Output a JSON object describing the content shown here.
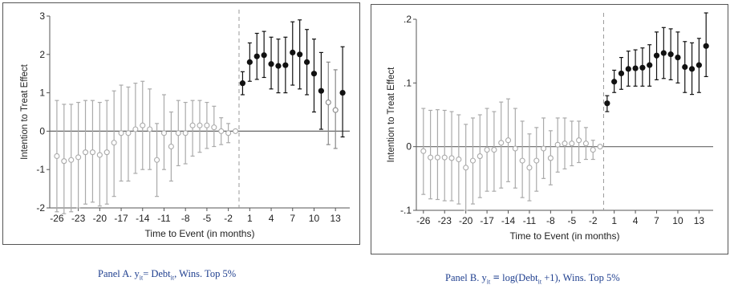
{
  "chart_data": [
    {
      "type": "scatter",
      "xlabel": "Time to Event (in months)",
      "ylabel": "Intention to Treat Effect",
      "ylim": [
        -2,
        3
      ],
      "yticks": [
        "-2",
        "-1",
        "0",
        "1",
        "2",
        "3"
      ],
      "yticks_values": [
        -2,
        -1,
        0,
        1,
        2,
        3
      ],
      "xticks": [
        -26,
        -23,
        -20,
        -17,
        -14,
        -11,
        -8,
        -5,
        -2,
        1,
        4,
        7,
        10,
        13
      ],
      "xlim": [
        -27,
        15
      ],
      "event_line_x": -0.5,
      "colors": {
        "pre": "#aaaaaa",
        "post": "#111111",
        "axis": "#555555"
      },
      "series": [
        {
          "values": [
            {
              "x": -26,
              "y": -0.65,
              "lo": -2.1,
              "hi": 0.8
            },
            {
              "x": -25,
              "y": -0.78,
              "lo": -2.15,
              "hi": 0.7
            },
            {
              "x": -24,
              "y": -0.75,
              "lo": -2.1,
              "hi": 0.7
            },
            {
              "x": -23,
              "y": -0.68,
              "lo": -2.0,
              "hi": 0.75
            },
            {
              "x": -22,
              "y": -0.55,
              "lo": -1.9,
              "hi": 0.8
            },
            {
              "x": -21,
              "y": -0.55,
              "lo": -1.85,
              "hi": 0.8
            },
            {
              "x": -20,
              "y": -0.62,
              "lo": -1.95,
              "hi": 0.75
            },
            {
              "x": -19,
              "y": -0.55,
              "lo": -1.9,
              "hi": 0.8
            },
            {
              "x": -18,
              "y": -0.3,
              "lo": -1.7,
              "hi": 1.05
            },
            {
              "x": -17,
              "y": -0.05,
              "lo": -1.3,
              "hi": 1.2
            },
            {
              "x": -16,
              "y": -0.05,
              "lo": -1.3,
              "hi": 1.15
            },
            {
              "x": -15,
              "y": 0.05,
              "lo": -1.1,
              "hi": 1.25
            },
            {
              "x": -14,
              "y": 0.15,
              "lo": -1.0,
              "hi": 1.3
            },
            {
              "x": -13,
              "y": 0.05,
              "lo": -1.0,
              "hi": 1.1
            },
            {
              "x": -12,
              "y": -0.75,
              "lo": -1.7,
              "hi": 0.2
            },
            {
              "x": -11,
              "y": -0.05,
              "lo": -1.0,
              "hi": 0.95
            },
            {
              "x": -10,
              "y": -0.4,
              "lo": -1.3,
              "hi": 0.5
            },
            {
              "x": -9,
              "y": -0.05,
              "lo": -0.9,
              "hi": 0.8
            },
            {
              "x": -8,
              "y": -0.05,
              "lo": -0.85,
              "hi": 0.75
            },
            {
              "x": -7,
              "y": 0.15,
              "lo": -0.65,
              "hi": 0.8
            },
            {
              "x": -6,
              "y": 0.15,
              "lo": -0.55,
              "hi": 0.8
            },
            {
              "x": -5,
              "y": 0.15,
              "lo": -0.45,
              "hi": 0.75
            },
            {
              "x": -4,
              "y": 0.1,
              "lo": -0.4,
              "hi": 0.65
            },
            {
              "x": -3,
              "y": 0.0,
              "lo": -0.35,
              "hi": 0.35
            },
            {
              "x": -2,
              "y": -0.05,
              "lo": -0.3,
              "hi": 0.2
            },
            {
              "x": -1,
              "y": 0.0,
              "lo": 0.0,
              "hi": 0.0
            }
          ]
        },
        {
          "values": [
            {
              "x": 0,
              "y": 1.25,
              "lo": 0.95,
              "hi": 1.55
            },
            {
              "x": 1,
              "y": 1.8,
              "lo": 1.3,
              "hi": 2.3
            },
            {
              "x": 2,
              "y": 1.95,
              "lo": 1.35,
              "hi": 2.55
            },
            {
              "x": 3,
              "y": 1.98,
              "lo": 1.4,
              "hi": 2.6
            },
            {
              "x": 4,
              "y": 1.75,
              "lo": 1.1,
              "hi": 2.45
            },
            {
              "x": 5,
              "y": 1.7,
              "lo": 1.0,
              "hi": 2.4
            },
            {
              "x": 6,
              "y": 1.72,
              "lo": 1.0,
              "hi": 2.45
            },
            {
              "x": 7,
              "y": 2.05,
              "lo": 1.2,
              "hi": 2.85
            },
            {
              "x": 8,
              "y": 2.0,
              "lo": 1.1,
              "hi": 2.9
            },
            {
              "x": 9,
              "y": 1.8,
              "lo": 0.95,
              "hi": 2.65
            },
            {
              "x": 10,
              "y": 1.5,
              "lo": 0.5,
              "hi": 2.4
            },
            {
              "x": 11,
              "y": 1.05,
              "lo": 0.05,
              "hi": 2.05
            },
            {
              "x": 12,
              "y": 0.75,
              "lo": -0.35,
              "hi": 1.8
            },
            {
              "x": 13,
              "y": 0.55,
              "lo": -0.45,
              "hi": 1.6
            },
            {
              "x": 14,
              "y": 1.0,
              "lo": -0.15,
              "hi": 2.2
            }
          ],
          "open_points": [
            12,
            13
          ]
        }
      ]
    },
    {
      "type": "scatter",
      "xlabel": "Time to Event (in months)",
      "ylabel": "Intention to Treat Effect",
      "ylim": [
        -0.1,
        0.2
      ],
      "yticks": [
        "-.1",
        "0",
        ".1",
        ".2"
      ],
      "yticks_values": [
        -0.1,
        0,
        0.1,
        0.2
      ],
      "xticks": [
        -26,
        -23,
        -20,
        -17,
        -14,
        -11,
        -8,
        -5,
        -2,
        1,
        4,
        7,
        10,
        13
      ],
      "xlim": [
        -27,
        15
      ],
      "event_line_x": -0.5,
      "colors": {
        "pre": "#aaaaaa",
        "post": "#111111",
        "axis": "#555555"
      },
      "series": [
        {
          "values": [
            {
              "x": -26,
              "y": -0.007,
              "lo": -0.075,
              "hi": 0.06
            },
            {
              "x": -25,
              "y": -0.017,
              "lo": -0.082,
              "hi": 0.057
            },
            {
              "x": -24,
              "y": -0.017,
              "lo": -0.083,
              "hi": 0.058
            },
            {
              "x": -23,
              "y": -0.017,
              "lo": -0.085,
              "hi": 0.057
            },
            {
              "x": -22,
              "y": -0.018,
              "lo": -0.085,
              "hi": 0.055
            },
            {
              "x": -21,
              "y": -0.02,
              "lo": -0.09,
              "hi": 0.05
            },
            {
              "x": -20,
              "y": -0.033,
              "lo": -0.1,
              "hi": 0.035
            },
            {
              "x": -19,
              "y": -0.022,
              "lo": -0.09,
              "hi": 0.045
            },
            {
              "x": -18,
              "y": -0.015,
              "lo": -0.08,
              "hi": 0.05
            },
            {
              "x": -17,
              "y": -0.005,
              "lo": -0.07,
              "hi": 0.06
            },
            {
              "x": -16,
              "y": -0.005,
              "lo": -0.07,
              "hi": 0.055
            },
            {
              "x": -15,
              "y": 0.006,
              "lo": -0.065,
              "hi": 0.07
            },
            {
              "x": -14,
              "y": 0.01,
              "lo": -0.055,
              "hi": 0.075
            },
            {
              "x": -13,
              "y": -0.003,
              "lo": -0.065,
              "hi": 0.06
            },
            {
              "x": -12,
              "y": -0.022,
              "lo": -0.08,
              "hi": 0.04
            },
            {
              "x": -11,
              "y": -0.033,
              "lo": -0.085,
              "hi": 0.02
            },
            {
              "x": -10,
              "y": -0.022,
              "lo": -0.07,
              "hi": 0.03
            },
            {
              "x": -9,
              "y": -0.003,
              "lo": -0.05,
              "hi": 0.045
            },
            {
              "x": -8,
              "y": -0.018,
              "lo": -0.06,
              "hi": 0.025
            },
            {
              "x": -7,
              "y": 0.003,
              "lo": -0.04,
              "hi": 0.045
            },
            {
              "x": -6,
              "y": 0.005,
              "lo": -0.035,
              "hi": 0.045
            },
            {
              "x": -5,
              "y": 0.005,
              "lo": -0.03,
              "hi": 0.04
            },
            {
              "x": -4,
              "y": 0.01,
              "lo": -0.025,
              "hi": 0.04
            },
            {
              "x": -3,
              "y": 0.005,
              "lo": -0.02,
              "hi": 0.03
            },
            {
              "x": -2,
              "y": -0.005,
              "lo": -0.02,
              "hi": 0.01
            },
            {
              "x": -1,
              "y": 0.0,
              "lo": 0.0,
              "hi": 0.0
            }
          ]
        },
        {
          "values": [
            {
              "x": 0,
              "y": 0.068,
              "lo": 0.055,
              "hi": 0.08
            },
            {
              "x": 1,
              "y": 0.102,
              "lo": 0.085,
              "hi": 0.12
            },
            {
              "x": 2,
              "y": 0.115,
              "lo": 0.09,
              "hi": 0.14
            },
            {
              "x": 3,
              "y": 0.122,
              "lo": 0.095,
              "hi": 0.15
            },
            {
              "x": 4,
              "y": 0.123,
              "lo": 0.095,
              "hi": 0.152
            },
            {
              "x": 5,
              "y": 0.124,
              "lo": 0.095,
              "hi": 0.155
            },
            {
              "x": 6,
              "y": 0.128,
              "lo": 0.095,
              "hi": 0.16
            },
            {
              "x": 7,
              "y": 0.143,
              "lo": 0.105,
              "hi": 0.18
            },
            {
              "x": 8,
              "y": 0.147,
              "lo": 0.107,
              "hi": 0.187
            },
            {
              "x": 9,
              "y": 0.145,
              "lo": 0.105,
              "hi": 0.185
            },
            {
              "x": 10,
              "y": 0.14,
              "lo": 0.1,
              "hi": 0.18
            },
            {
              "x": 11,
              "y": 0.125,
              "lo": 0.085,
              "hi": 0.165
            },
            {
              "x": 12,
              "y": 0.122,
              "lo": 0.082,
              "hi": 0.163
            },
            {
              "x": 13,
              "y": 0.128,
              "lo": 0.085,
              "hi": 0.17
            },
            {
              "x": 14,
              "y": 0.158,
              "lo": 0.11,
              "hi": 0.21
            }
          ],
          "open_points": []
        }
      ]
    }
  ],
  "captions": {
    "a": {
      "prefix": "Panel A. y",
      "sub1": "it",
      "mid": "= Debt",
      "sub2": "it",
      "suffix": ", Wins. Top 5%"
    },
    "b": {
      "prefix": "Panel B. y",
      "sub1": "it",
      "op": " = ",
      "mid": "log(Debt",
      "sub2": "it",
      "suffix": " +1), Wins. Top 5%"
    }
  }
}
